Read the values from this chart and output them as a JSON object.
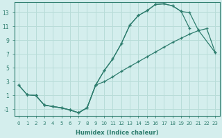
{
  "xlabel": "Humidex (Indice chaleur)",
  "bg_color": "#d4eeed",
  "line_color": "#2e7d6e",
  "grid_color": "#b8dcd8",
  "xlim": [
    -0.5,
    23.5
  ],
  "ylim": [
    -2.0,
    14.5
  ],
  "xticks": [
    0,
    1,
    2,
    3,
    4,
    5,
    6,
    7,
    8,
    9,
    10,
    11,
    12,
    13,
    14,
    15,
    16,
    17,
    18,
    19,
    20,
    21,
    22,
    23
  ],
  "yticks": [
    -1,
    1,
    3,
    5,
    7,
    9,
    11,
    13
  ],
  "curve1_x": [
    0,
    1,
    2,
    3,
    4,
    5,
    6,
    7,
    8,
    9,
    10,
    11,
    12,
    13,
    14,
    15,
    16,
    17,
    18,
    19,
    20
  ],
  "curve1_y": [
    2.5,
    1.1,
    1.0,
    -0.4,
    -0.6,
    -0.8,
    -1.1,
    -1.5,
    -0.8,
    2.5,
    4.6,
    6.3,
    8.5,
    11.2,
    12.6,
    13.3,
    14.2,
    14.3,
    14.0,
    13.2,
    10.7
  ],
  "curve2_x": [
    0,
    1,
    2,
    3,
    4,
    5,
    6,
    7,
    8,
    9,
    10,
    11,
    12,
    13,
    14,
    15,
    16,
    17,
    18,
    19,
    20,
    21,
    23
  ],
  "curve2_y": [
    2.5,
    1.1,
    1.0,
    -0.4,
    -0.6,
    -0.8,
    -1.1,
    -1.5,
    -0.8,
    2.5,
    4.6,
    6.3,
    8.5,
    11.2,
    12.6,
    13.3,
    14.2,
    14.3,
    14.0,
    13.2,
    13.0,
    10.5,
    7.2
  ],
  "curve3_x": [
    1,
    2,
    3,
    4,
    5,
    6,
    7,
    8,
    9,
    10,
    11,
    12,
    13,
    14,
    15,
    16,
    17,
    18,
    19,
    20,
    21,
    22,
    23
  ],
  "curve3_y": [
    1.1,
    1.0,
    -0.4,
    -0.6,
    -0.8,
    -1.1,
    -1.5,
    -0.8,
    2.5,
    3.0,
    3.7,
    4.5,
    5.2,
    5.9,
    6.6,
    7.3,
    8.0,
    8.7,
    9.3,
    9.9,
    10.4,
    10.7,
    7.2
  ]
}
